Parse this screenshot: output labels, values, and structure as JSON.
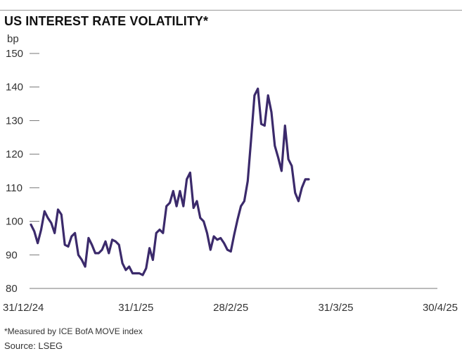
{
  "chart_data": {
    "type": "line",
    "title": "US INTEREST RATE VOLATILITY*",
    "ylabel": "bp",
    "ylim": [
      80,
      150
    ],
    "yticks": [
      80,
      90,
      100,
      110,
      120,
      130,
      140,
      150
    ],
    "xlim": [
      "2024-12-31",
      "2025-04-30"
    ],
    "xticks": [
      {
        "date": "2024-12-31",
        "label": "31/12/24"
      },
      {
        "date": "2025-01-31",
        "label": "31/1/25"
      },
      {
        "date": "2025-02-28",
        "label": "28/2/25"
      },
      {
        "date": "2025-03-31",
        "label": "31/3/25"
      },
      {
        "date": "2025-04-30",
        "label": "30/4/25"
      }
    ],
    "grid": false,
    "line_color": "#3b2a6b",
    "series": [
      {
        "name": "",
        "points": [
          [
            "2024-12-31",
            99
          ],
          [
            "2025-01-01",
            97
          ],
          [
            "2025-01-02",
            93.5
          ],
          [
            "2025-01-03",
            97.5
          ],
          [
            "2025-01-04",
            103
          ],
          [
            "2025-01-05",
            101
          ],
          [
            "2025-01-06",
            99.5
          ],
          [
            "2025-01-07",
            96.5
          ],
          [
            "2025-01-08",
            103.5
          ],
          [
            "2025-01-09",
            102
          ],
          [
            "2025-01-10",
            93
          ],
          [
            "2025-01-11",
            92.5
          ],
          [
            "2025-01-12",
            95.5
          ],
          [
            "2025-01-13",
            96.5
          ],
          [
            "2025-01-14",
            90
          ],
          [
            "2025-01-15",
            88.5
          ],
          [
            "2025-01-16",
            86.5
          ],
          [
            "2025-01-17",
            95
          ],
          [
            "2025-01-18",
            93
          ],
          [
            "2025-01-19",
            90.5
          ],
          [
            "2025-01-20",
            90.5
          ],
          [
            "2025-01-21",
            91.5
          ],
          [
            "2025-01-22",
            94
          ],
          [
            "2025-01-23",
            90.5
          ],
          [
            "2025-01-24",
            94.5
          ],
          [
            "2025-01-25",
            94
          ],
          [
            "2025-01-26",
            93
          ],
          [
            "2025-01-27",
            87.5
          ],
          [
            "2025-01-28",
            85.5
          ],
          [
            "2025-01-29",
            86.5
          ],
          [
            "2025-01-30",
            84.5
          ],
          [
            "2025-01-31",
            84.5
          ],
          [
            "2025-02-01",
            84.5
          ],
          [
            "2025-02-02",
            84
          ],
          [
            "2025-02-03",
            86
          ],
          [
            "2025-02-04",
            92
          ],
          [
            "2025-02-05",
            88.5
          ],
          [
            "2025-02-06",
            96.5
          ],
          [
            "2025-02-07",
            97.5
          ],
          [
            "2025-02-08",
            96.5
          ],
          [
            "2025-02-09",
            104.5
          ],
          [
            "2025-02-10",
            105.5
          ],
          [
            "2025-02-11",
            109
          ],
          [
            "2025-02-12",
            104.5
          ],
          [
            "2025-02-13",
            109
          ],
          [
            "2025-02-14",
            104.5
          ],
          [
            "2025-02-15",
            112.5
          ],
          [
            "2025-02-16",
            114.5
          ],
          [
            "2025-02-17",
            104
          ],
          [
            "2025-02-18",
            106
          ],
          [
            "2025-02-19",
            101
          ],
          [
            "2025-02-20",
            100
          ],
          [
            "2025-02-21",
            96.5
          ],
          [
            "2025-02-22",
            91.5
          ],
          [
            "2025-02-23",
            95.5
          ],
          [
            "2025-02-24",
            94.5
          ],
          [
            "2025-02-25",
            95
          ],
          [
            "2025-02-26",
            93.5
          ],
          [
            "2025-02-27",
            91.5
          ],
          [
            "2025-02-28",
            91
          ],
          [
            "2025-03-01",
            96
          ],
          [
            "2025-03-02",
            100.5
          ],
          [
            "2025-03-03",
            104.5
          ],
          [
            "2025-03-04",
            106
          ],
          [
            "2025-03-05",
            112
          ],
          [
            "2025-03-06",
            124.5
          ],
          [
            "2025-03-07",
            137.5
          ],
          [
            "2025-03-08",
            139.5
          ],
          [
            "2025-03-09",
            129
          ],
          [
            "2025-03-10",
            128.5
          ],
          [
            "2025-03-11",
            137.5
          ],
          [
            "2025-03-12",
            132.5
          ],
          [
            "2025-03-13",
            122.5
          ],
          [
            "2025-03-14",
            119
          ],
          [
            "2025-03-15",
            115
          ],
          [
            "2025-03-16",
            128.5
          ],
          [
            "2025-03-17",
            118.5
          ],
          [
            "2025-03-18",
            116.5
          ],
          [
            "2025-03-19",
            108.5
          ],
          [
            "2025-03-20",
            106
          ],
          [
            "2025-03-21",
            110
          ],
          [
            "2025-03-22",
            112.5
          ],
          [
            "2025-03-23",
            112.5
          ]
        ]
      }
    ]
  },
  "footnote": "*Measured by ICE BofA MOVE index",
  "source": "Source: LSEG"
}
